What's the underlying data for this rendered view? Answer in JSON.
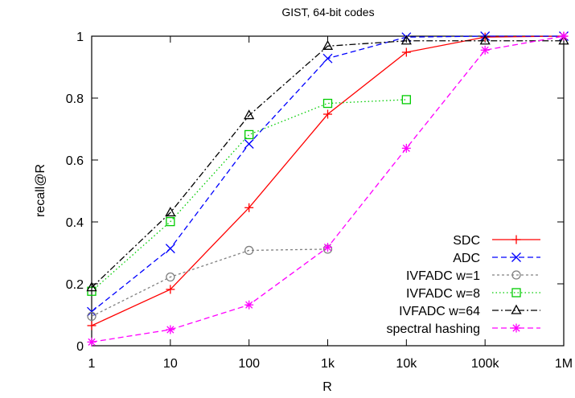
{
  "chart_data": {
    "type": "line",
    "title": "GIST, 64-bit codes",
    "xlabel": "R",
    "ylabel": "recall@R",
    "xscale": "log",
    "xlim": [
      1,
      1000000
    ],
    "ylim": [
      0,
      1
    ],
    "x_ticks": [
      {
        "value": 1,
        "label": "1"
      },
      {
        "value": 10,
        "label": "10"
      },
      {
        "value": 100,
        "label": "100"
      },
      {
        "value": 1000,
        "label": "1k"
      },
      {
        "value": 10000,
        "label": "10k"
      },
      {
        "value": 100000,
        "label": "100k"
      },
      {
        "value": 1000000,
        "label": "1M"
      }
    ],
    "y_ticks": [
      {
        "value": 0,
        "label": "0"
      },
      {
        "value": 0.2,
        "label": "0.2"
      },
      {
        "value": 0.4,
        "label": "0.4"
      },
      {
        "value": 0.6,
        "label": "0.6"
      },
      {
        "value": 0.8,
        "label": "0.8"
      },
      {
        "value": 1,
        "label": "1"
      }
    ],
    "grid": false,
    "legend_position": "bottom-right",
    "series": [
      {
        "name": "SDC",
        "color": "#ff0000",
        "dash": "solid",
        "marker": "plus",
        "x": [
          1,
          10,
          100,
          1000,
          10000,
          100000,
          1000000
        ],
        "y": [
          0.065,
          0.182,
          0.446,
          0.748,
          0.948,
          0.997,
          1.0
        ]
      },
      {
        "name": "ADC",
        "color": "#0000ff",
        "dash": "dashed",
        "marker": "cross",
        "x": [
          1,
          10,
          100,
          1000,
          10000,
          100000,
          1000000
        ],
        "y": [
          0.11,
          0.314,
          0.652,
          0.928,
          0.997,
          1.0,
          1.0
        ]
      },
      {
        "name": "IVFADC w=1",
        "color": "#808080",
        "dash": "dotted-dense",
        "marker": "circle",
        "x": [
          1,
          10,
          100,
          1000
        ],
        "y": [
          0.095,
          0.222,
          0.308,
          0.312
        ]
      },
      {
        "name": "IVFADC w=8",
        "color": "#00cc00",
        "dash": "dotted",
        "marker": "square",
        "x": [
          1,
          10,
          100,
          1000,
          10000
        ],
        "y": [
          0.176,
          0.401,
          0.682,
          0.783,
          0.795
        ]
      },
      {
        "name": "IVFADC w=64",
        "color": "#000000",
        "dash": "dashdot",
        "marker": "triangle",
        "x": [
          1,
          10,
          100,
          1000,
          10000,
          100000,
          1000000
        ],
        "y": [
          0.188,
          0.43,
          0.744,
          0.968,
          0.985,
          0.985,
          0.985
        ]
      },
      {
        "name": "spectral hashing",
        "color": "#ff00ff",
        "dash": "dashed",
        "marker": "star",
        "x": [
          1,
          10,
          100,
          1000,
          10000,
          100000,
          1000000
        ],
        "y": [
          0.012,
          0.052,
          0.132,
          0.318,
          0.638,
          0.955,
          1.0
        ]
      }
    ]
  }
}
